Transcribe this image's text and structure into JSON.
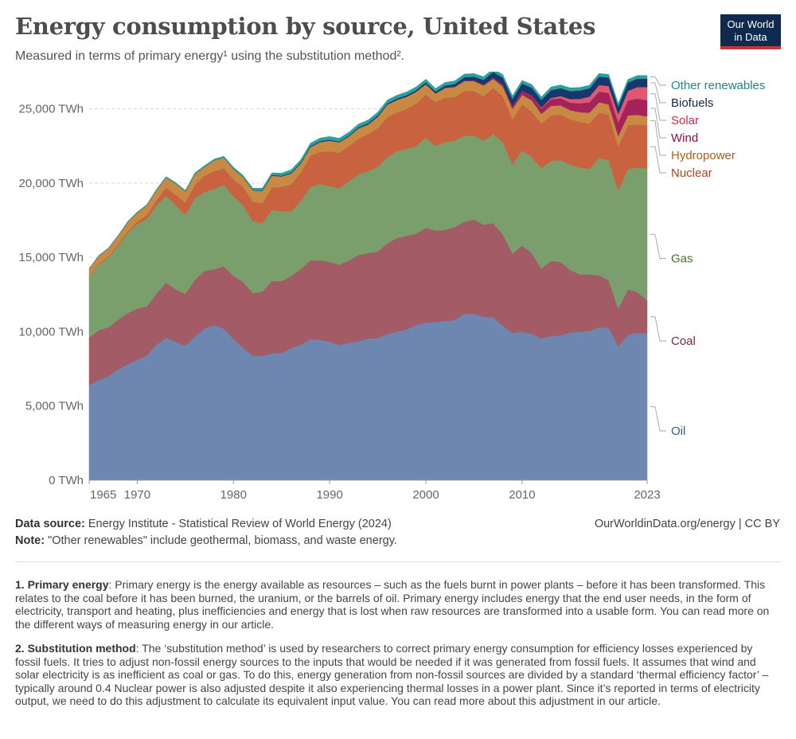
{
  "header": {
    "title": "Energy consumption by source, United States",
    "subtitle": "Measured in terms of primary energy¹ using the substitution method².",
    "logo_line1": "Our World",
    "logo_line2": "in Data"
  },
  "chart_data": {
    "type": "area",
    "stacked": true,
    "x_ticks": [
      1965,
      1970,
      1980,
      1990,
      2000,
      2010,
      2023
    ],
    "y_ticks": [
      0,
      5000,
      10000,
      15000,
      20000,
      25000
    ],
    "y_tick_labels": [
      "0 TWh",
      "5,000 TWh",
      "10,000 TWh",
      "15,000 TWh",
      "20,000 TWh",
      "25,000 TWh"
    ],
    "xlim": [
      1965,
      2023
    ],
    "ylim": [
      0,
      27500
    ],
    "grid": "horizontal dashed",
    "legend": "right, labels at series ends",
    "years": [
      1965,
      1966,
      1967,
      1968,
      1969,
      1970,
      1971,
      1972,
      1973,
      1974,
      1975,
      1976,
      1977,
      1978,
      1979,
      1980,
      1981,
      1982,
      1983,
      1984,
      1985,
      1986,
      1987,
      1988,
      1989,
      1990,
      1991,
      1992,
      1993,
      1994,
      1995,
      1996,
      1997,
      1998,
      1999,
      2000,
      2001,
      2002,
      2003,
      2004,
      2005,
      2006,
      2007,
      2008,
      2009,
      2010,
      2011,
      2012,
      2013,
      2014,
      2015,
      2016,
      2017,
      2018,
      2019,
      2020,
      2021,
      2022,
      2023
    ],
    "series": [
      {
        "name": "Oil",
        "color": "#6d87b0",
        "label_color": "#3b5b8f",
        "values": [
          6400,
          6750,
          7000,
          7450,
          7800,
          8100,
          8400,
          9100,
          9600,
          9300,
          9050,
          9700,
          10200,
          10450,
          10200,
          9500,
          8900,
          8400,
          8350,
          8550,
          8550,
          8900,
          9100,
          9500,
          9450,
          9300,
          9100,
          9250,
          9350,
          9550,
          9550,
          9850,
          10000,
          10150,
          10450,
          10600,
          10650,
          10700,
          10800,
          11200,
          11200,
          11000,
          10950,
          10400,
          9900,
          10000,
          9850,
          9550,
          9700,
          9750,
          9950,
          10000,
          10050,
          10300,
          10250,
          9000,
          9800,
          9900,
          9900
        ]
      },
      {
        "name": "Coal",
        "color": "#a35c66",
        "label_color": "#7a2a34",
        "values": [
          3200,
          3350,
          3300,
          3350,
          3450,
          3450,
          3300,
          3450,
          3700,
          3550,
          3500,
          3800,
          3900,
          3750,
          4200,
          4250,
          4450,
          4200,
          4350,
          4850,
          4850,
          4850,
          5100,
          5300,
          5350,
          5400,
          5400,
          5550,
          5800,
          5750,
          5850,
          6100,
          6300,
          6300,
          6150,
          6400,
          6150,
          6150,
          6250,
          6200,
          6350,
          6200,
          6350,
          6150,
          5350,
          5800,
          5450,
          4700,
          5050,
          4950,
          4200,
          3850,
          3800,
          3500,
          3200,
          2550,
          3050,
          2750,
          2200
        ]
      },
      {
        "name": "Gas",
        "color": "#7a9f6c",
        "label_color": "#3f7231",
        "values": [
          4100,
          4450,
          4700,
          5000,
          5400,
          5700,
          5900,
          5950,
          5850,
          5650,
          5300,
          5500,
          5300,
          5400,
          5500,
          5350,
          5150,
          4850,
          4600,
          4800,
          4700,
          4350,
          4600,
          4950,
          5150,
          5100,
          5150,
          5300,
          5450,
          5500,
          5700,
          5800,
          5850,
          5850,
          5900,
          6050,
          5700,
          5900,
          5800,
          5800,
          5650,
          5650,
          6000,
          6200,
          6000,
          6400,
          6450,
          6750,
          6750,
          6850,
          7100,
          7200,
          7100,
          7900,
          8100,
          7950,
          8100,
          8400,
          8900
        ]
      },
      {
        "name": "Nuclear",
        "color": "#c9623f",
        "label_color": "#b0431b",
        "values": [
          30,
          40,
          50,
          80,
          100,
          150,
          250,
          350,
          550,
          700,
          850,
          900,
          1100,
          1200,
          1100,
          1150,
          1250,
          1300,
          1350,
          1500,
          1650,
          1800,
          1900,
          2100,
          2150,
          2350,
          2400,
          2400,
          2380,
          2500,
          2600,
          2700,
          2600,
          2700,
          2850,
          2900,
          2950,
          3000,
          2930,
          3000,
          3000,
          3000,
          3100,
          3100,
          3050,
          3100,
          3050,
          3000,
          3050,
          3050,
          3050,
          3070,
          3050,
          3050,
          3050,
          2950,
          2950,
          2900,
          2900
        ]
      },
      {
        "name": "Hydropower",
        "color": "#c88a42",
        "label_color": "#b25e14",
        "values": [
          500,
          520,
          560,
          560,
          620,
          620,
          660,
          680,
          680,
          760,
          740,
          720,
          600,
          740,
          710,
          700,
          640,
          760,
          830,
          800,
          700,
          750,
          620,
          580,
          660,
          700,
          690,
          640,
          700,
          640,
          760,
          840,
          850,
          810,
          800,
          700,
          570,
          650,
          680,
          670,
          670,
          710,
          610,
          650,
          690,
          640,
          770,
          660,
          650,
          640,
          610,
          650,
          740,
          690,
          690,
          720,
          660,
          640,
          600
        ]
      },
      {
        "name": "Wind",
        "color": "#a3235a",
        "label_color": "#8a1243",
        "values": [
          0,
          0,
          0,
          0,
          0,
          0,
          0,
          0,
          0,
          0,
          0,
          0,
          0,
          0,
          0,
          0,
          0,
          0,
          0,
          0,
          0,
          0,
          0,
          0,
          5,
          8,
          8,
          8,
          8,
          9,
          9,
          9,
          9,
          9,
          12,
          15,
          18,
          28,
          30,
          37,
          46,
          70,
          90,
          145,
          195,
          250,
          315,
          365,
          440,
          470,
          510,
          600,
          690,
          720,
          780,
          920,
          1000,
          1100,
          1070
        ]
      },
      {
        "name": "Solar",
        "color": "#e0586f",
        "label_color": "#d4294b",
        "values": [
          0,
          0,
          0,
          0,
          0,
          0,
          0,
          0,
          0,
          0,
          0,
          0,
          0,
          0,
          0,
          0,
          0,
          0,
          0,
          0,
          0,
          0,
          0,
          0,
          0,
          0,
          0,
          0,
          0,
          0,
          0,
          0,
          0,
          0,
          0,
          0,
          0,
          0,
          0,
          0,
          0,
          0,
          0,
          5,
          10,
          15,
          25,
          50,
          90,
          150,
          230,
          300,
          390,
          440,
          470,
          560,
          650,
          780,
          890
        ]
      },
      {
        "name": "Biofuels",
        "color": "#18376d",
        "label_color": "#0e2a4e",
        "values": [
          0,
          0,
          0,
          0,
          0,
          0,
          0,
          0,
          0,
          0,
          0,
          0,
          0,
          0,
          0,
          10,
          15,
          25,
          35,
          40,
          50,
          55,
          60,
          60,
          60,
          60,
          50,
          60,
          70,
          80,
          90,
          80,
          90,
          100,
          100,
          110,
          120,
          140,
          180,
          220,
          250,
          320,
          390,
          440,
          470,
          500,
          520,
          520,
          520,
          530,
          540,
          560,
          560,
          570,
          570,
          500,
          560,
          570,
          580
        ]
      },
      {
        "name": "Other renewables",
        "color": "#2aa19c",
        "label_color": "#1b8a84",
        "values": [
          20,
          25,
          28,
          30,
          35,
          40,
          45,
          50,
          60,
          70,
          70,
          80,
          80,
          80,
          100,
          110,
          120,
          130,
          140,
          150,
          170,
          190,
          200,
          200,
          210,
          220,
          220,
          220,
          220,
          220,
          220,
          220,
          220,
          220,
          220,
          220,
          210,
          210,
          210,
          210,
          210,
          210,
          210,
          210,
          210,
          210,
          210,
          210,
          220,
          220,
          220,
          210,
          210,
          210,
          210,
          210,
          210,
          210,
          210
        ]
      }
    ]
  },
  "footer": {
    "source_label": "Data source:",
    "source_text": "Energy Institute - Statistical Review of World Energy (2024)",
    "credit": "OurWorldinData.org/energy | CC BY",
    "note_label": "Note:",
    "note_text": "\"Other renewables\" include geothermal, biomass, and waste energy."
  },
  "footnotes": [
    {
      "label": "1. Primary energy",
      "text": ": Primary energy is the energy available as resources – such as the fuels burnt in power plants – before it has been transformed. This relates to the coal before it has been burned, the uranium, or the barrels of oil. Primary energy includes energy that the end user needs, in the form of electricity, transport and heating, plus inefficiencies and energy that is lost when raw resources are transformed into a usable form. You can read more on the different ways of measuring energy in our article."
    },
    {
      "label": "2. Substitution method",
      "text": ": The ‘substitution method’ is used by researchers to correct primary energy consumption for efficiency losses experienced by fossil fuels. It tries to adjust non-fossil energy sources to the inputs that would be needed if it was generated from fossil fuels. It assumes that wind and solar electricity is as inefficient as coal or gas. To do this, energy generation from non-fossil sources are divided by a standard ‘thermal efficiency factor’ – typically around 0.4 Nuclear power is also adjusted despite it also experiencing thermal losses in a power plant. Since it’s reported in terms of electricity output, we need to do this adjustment to calculate its equivalent input value. You can read more about this adjustment in our article."
    }
  ]
}
